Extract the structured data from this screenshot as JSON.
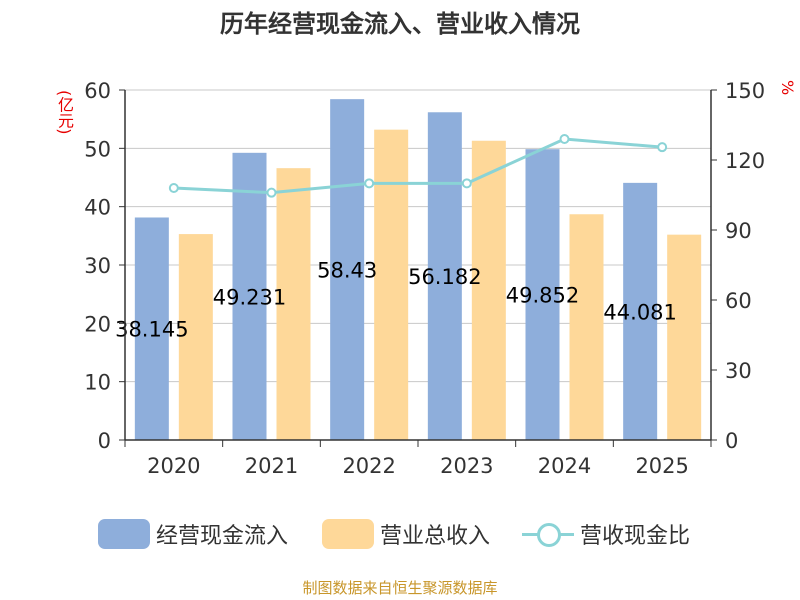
{
  "title": "历年经营现金流入、营业收入情况",
  "units": {
    "left": "(亿元)",
    "right": "%"
  },
  "footer": "制图数据来自恒生聚源数据库",
  "colors": {
    "cash": "#8eaedb",
    "revenue": "#fed899",
    "ratio": "#8ad3d6",
    "axis": "#333333",
    "grid": "#c8c8c8"
  },
  "chart_data": {
    "type": "bar",
    "categories": [
      "2020",
      "2021",
      "2022",
      "2023",
      "2024",
      "2025"
    ],
    "series": [
      {
        "name": "经营现金流入",
        "type": "bar",
        "axis": "left",
        "values": [
          38.145,
          49.231,
          58.43,
          56.182,
          49.852,
          44.081
        ],
        "labels": [
          "38.145",
          "49.231",
          "58.43",
          "56.182",
          "49.852",
          "44.081"
        ]
      },
      {
        "name": "营业总收入",
        "type": "bar",
        "axis": "left",
        "values": [
          35.3,
          46.6,
          53.2,
          51.3,
          38.7,
          35.2
        ]
      },
      {
        "name": "营收现金比",
        "type": "line",
        "axis": "right",
        "values": [
          108,
          106,
          110,
          110,
          129,
          125.5
        ]
      }
    ],
    "y_left": {
      "min": 0,
      "max": 60,
      "ticks": [
        0,
        10,
        20,
        30,
        40,
        50,
        60
      ]
    },
    "y_right": {
      "min": 0,
      "max": 150,
      "ticks": [
        0,
        30,
        60,
        90,
        120,
        150
      ]
    },
    "grid": true,
    "legend_position": "bottom"
  }
}
